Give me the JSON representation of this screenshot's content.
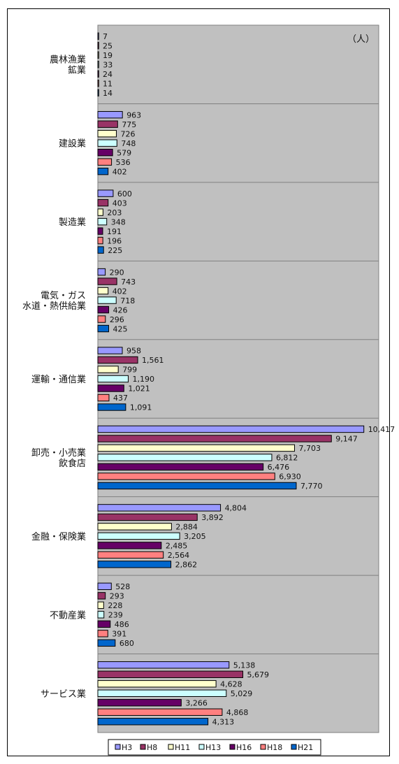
{
  "chart_data": {
    "type": "bar",
    "orientation": "horizontal",
    "unit": "（人）",
    "categories": [
      [
        "農林漁業",
        "鉱業"
      ],
      [
        "建設業"
      ],
      [
        "製造業"
      ],
      [
        "電気・ガス",
        "水道・熱供給業"
      ],
      [
        "運輸・通信業"
      ],
      [
        "卸売・小売業",
        "飲食店"
      ],
      [
        "金融・保険業"
      ],
      [
        "不動産業"
      ],
      [
        "サービス業"
      ]
    ],
    "series": [
      {
        "name": "H3",
        "color": "#9999ff",
        "values": [
          7,
          963,
          600,
          290,
          958,
          10417,
          4804,
          528,
          5138
        ],
        "labels": [
          "7",
          "963",
          "600",
          "290",
          "958",
          "10,417",
          "4,804",
          "528",
          "5,138"
        ]
      },
      {
        "name": "H8",
        "color": "#993366",
        "values": [
          25,
          775,
          403,
          743,
          1561,
          9147,
          3892,
          293,
          5679
        ],
        "labels": [
          "25",
          "775",
          "403",
          "743",
          "1,561",
          "9,147",
          "3,892",
          "293",
          "5,679"
        ]
      },
      {
        "name": "H11",
        "color": "#ffffcc",
        "values": [
          19,
          726,
          203,
          402,
          799,
          7703,
          2884,
          228,
          4628
        ],
        "labels": [
          "19",
          "726",
          "203",
          "402",
          "799",
          "7,703",
          "2,884",
          "228",
          "4,628"
        ]
      },
      {
        "name": "H13",
        "color": "#ccffff",
        "values": [
          33,
          748,
          348,
          718,
          1190,
          6812,
          3205,
          239,
          5029
        ],
        "labels": [
          "33",
          "748",
          "348",
          "718",
          "1,190",
          "6,812",
          "3,205",
          "239",
          "5,029"
        ]
      },
      {
        "name": "H16",
        "color": "#660066",
        "values": [
          24,
          579,
          191,
          426,
          1021,
          6476,
          2485,
          486,
          3266
        ],
        "labels": [
          "24",
          "579",
          "191",
          "426",
          "1,021",
          "6,476",
          "2,485",
          "486",
          "3,266"
        ]
      },
      {
        "name": "H18",
        "color": "#ff8080",
        "values": [
          11,
          536,
          196,
          296,
          437,
          6930,
          2564,
          391,
          4868
        ],
        "labels": [
          "11",
          "536",
          "196",
          "296",
          "437",
          "6,930",
          "2,564",
          "391",
          "4,868"
        ]
      },
      {
        "name": "H21",
        "color": "#0066cc",
        "values": [
          14,
          402,
          225,
          425,
          1091,
          7770,
          2862,
          680,
          4313
        ],
        "labels": [
          "14",
          "402",
          "225",
          "425",
          "1,091",
          "7,770",
          "2,862",
          "680",
          "4,313"
        ]
      }
    ],
    "xlim": [
      0,
      11000
    ],
    "plot_background": "#c0c0c0",
    "grid": false,
    "legend": "bottom"
  }
}
